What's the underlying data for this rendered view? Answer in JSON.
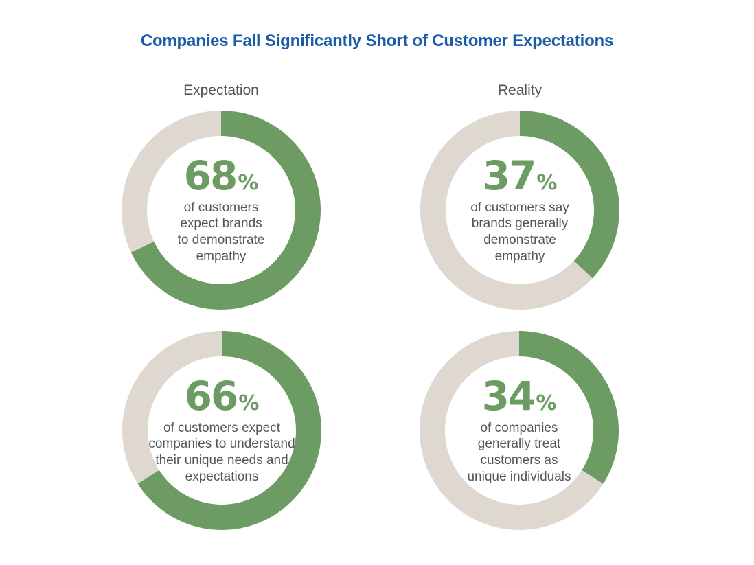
{
  "header": {
    "title": "Companies Fall Significantly Short of Customer Expectations",
    "title_color": "#1b5ca8"
  },
  "columns": {
    "left_label": "Expectation",
    "right_label": "Reality"
  },
  "colors": {
    "green": "#6d9b64",
    "track": "#ded8d1",
    "text_gray": "#54565c"
  },
  "chart_data": {
    "type": "pie",
    "subtype": "donut-grid",
    "title": "Companies Fall Significantly Short of Customer Expectations",
    "columns": [
      "Expectation",
      "Reality"
    ],
    "layout": {
      "rows": 2,
      "cols": 2,
      "legend": "none",
      "arc_start": "top",
      "arc_direction": "clockwise"
    },
    "donuts": [
      {
        "column": "Expectation",
        "value": 68,
        "unit": "%",
        "label": "of customers\nexpect brands\nto demonstrate\nempathy"
      },
      {
        "column": "Reality",
        "value": 37,
        "unit": "%",
        "label": "of customers say\nbrands generally\ndemonstrate\nempathy"
      },
      {
        "column": "Expectation",
        "value": 66,
        "unit": "%",
        "label": "of customers expect\ncompanies to understand\ntheir unique needs and\nexpectations"
      },
      {
        "column": "Reality",
        "value": 34,
        "unit": "%",
        "label": "of companies\ngenerally treat\ncustomers as\nunique individuals"
      }
    ]
  }
}
